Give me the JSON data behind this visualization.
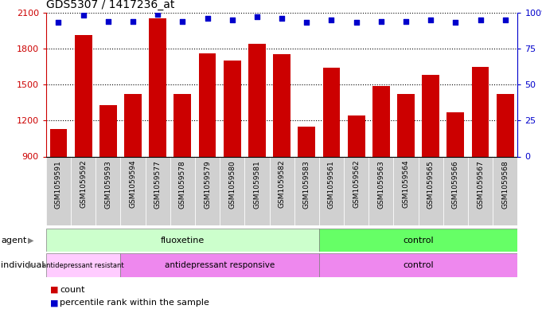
{
  "title": "GDS5307 / 1417236_at",
  "samples": [
    "GSM1059591",
    "GSM1059592",
    "GSM1059593",
    "GSM1059594",
    "GSM1059577",
    "GSM1059578",
    "GSM1059579",
    "GSM1059580",
    "GSM1059581",
    "GSM1059582",
    "GSM1059583",
    "GSM1059561",
    "GSM1059562",
    "GSM1059563",
    "GSM1059564",
    "GSM1059565",
    "GSM1059566",
    "GSM1059567",
    "GSM1059568"
  ],
  "counts": [
    1130,
    1910,
    1330,
    1420,
    2050,
    1420,
    1760,
    1700,
    1840,
    1750,
    1150,
    1640,
    1240,
    1490,
    1420,
    1580,
    1270,
    1650,
    1420
  ],
  "percentiles": [
    93,
    98,
    94,
    94,
    99,
    94,
    96,
    95,
    97,
    96,
    93,
    95,
    93,
    94,
    94,
    95,
    93,
    95,
    95
  ],
  "bar_color": "#cc0000",
  "dot_color": "#0000cc",
  "ylim_left": [
    900,
    2100
  ],
  "ylim_right": [
    0,
    100
  ],
  "yticks_left": [
    900,
    1200,
    1500,
    1800,
    2100
  ],
  "yticks_right": [
    0,
    25,
    50,
    75,
    100
  ],
  "fluox_count": 11,
  "resist_count": 3,
  "resp_count": 8,
  "ctrl_count": 8,
  "fluox_color": "#ccffcc",
  "ctrl_agent_color": "#66ff66",
  "resist_color": "#ffccff",
  "resp_color": "#ee88ee",
  "ctrl_indiv_color": "#ee88ee",
  "tick_bg_color": "#d0d0d0"
}
